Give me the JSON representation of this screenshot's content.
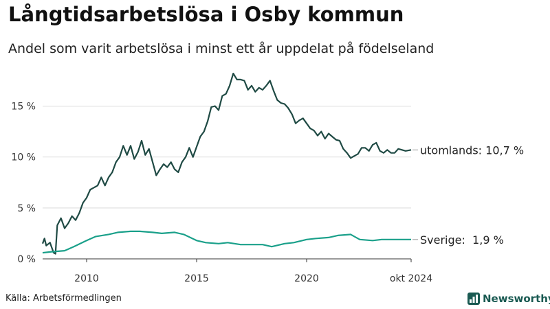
{
  "header": {
    "title": "Långtidsarbetslösa i Osby kommun",
    "subtitle": "Andel som varit arbetslösa i minst ett år uppdelat på födelseland"
  },
  "footer": {
    "source": "Källa: Arbetsförmedlingen",
    "brand": "Newsworthy"
  },
  "colors": {
    "foreign": "#1f4a44",
    "sweden": "#1aa08a",
    "grid": "#d9d9d9",
    "brand": "#1a5a52"
  },
  "chart_data": {
    "type": "line",
    "title": "Långtidsarbetslösa i Osby kommun",
    "subtitle": "Andel som varit arbetslösa i minst ett år uppdelat på födelseland",
    "xlabel": "",
    "ylabel": "",
    "xlim": [
      "2008-01",
      "2024-10"
    ],
    "ylim": [
      0,
      18
    ],
    "grid": "horizontal",
    "x_ticks": [
      {
        "x": "2010-01",
        "label": "2010"
      },
      {
        "x": "2015-01",
        "label": "2015"
      },
      {
        "x": "2020-01",
        "label": "2020"
      },
      {
        "x": "2024-10",
        "label": "okt 2024"
      }
    ],
    "y_ticks": [
      {
        "y": 0,
        "label": "0 %"
      },
      {
        "y": 5,
        "label": "5 %"
      },
      {
        "y": 10,
        "label": "10 %"
      },
      {
        "y": 15,
        "label": "15 %"
      }
    ],
    "series": [
      {
        "name": "utomlands",
        "end_label": "utomlands: 10,7 %",
        "color": "#1f4a44",
        "points": [
          [
            "2008-01",
            1.5
          ],
          [
            "2008-02",
            2.0
          ],
          [
            "2008-03",
            1.3
          ],
          [
            "2008-05",
            1.6
          ],
          [
            "2008-07",
            0.6
          ],
          [
            "2008-08",
            0.5
          ],
          [
            "2008-09",
            3.3
          ],
          [
            "2008-11",
            4.0
          ],
          [
            "2009-01",
            3.0
          ],
          [
            "2009-03",
            3.5
          ],
          [
            "2009-05",
            4.2
          ],
          [
            "2009-07",
            3.8
          ],
          [
            "2009-09",
            4.5
          ],
          [
            "2009-11",
            5.5
          ],
          [
            "2010-01",
            6.0
          ],
          [
            "2010-03",
            6.8
          ],
          [
            "2010-05",
            7.0
          ],
          [
            "2010-07",
            7.2
          ],
          [
            "2010-09",
            8.0
          ],
          [
            "2010-11",
            7.2
          ],
          [
            "2011-01",
            8.0
          ],
          [
            "2011-03",
            8.5
          ],
          [
            "2011-05",
            9.5
          ],
          [
            "2011-07",
            10.0
          ],
          [
            "2011-09",
            11.1
          ],
          [
            "2011-11",
            10.2
          ],
          [
            "2012-01",
            11.1
          ],
          [
            "2012-03",
            9.8
          ],
          [
            "2012-05",
            10.5
          ],
          [
            "2012-07",
            11.6
          ],
          [
            "2012-09",
            10.2
          ],
          [
            "2012-11",
            10.8
          ],
          [
            "2013-01",
            9.5
          ],
          [
            "2013-03",
            8.2
          ],
          [
            "2013-05",
            8.8
          ],
          [
            "2013-07",
            9.3
          ],
          [
            "2013-09",
            9.0
          ],
          [
            "2013-11",
            9.5
          ],
          [
            "2014-01",
            8.8
          ],
          [
            "2014-03",
            8.5
          ],
          [
            "2014-05",
            9.5
          ],
          [
            "2014-07",
            10.0
          ],
          [
            "2014-09",
            10.9
          ],
          [
            "2014-11",
            10.0
          ],
          [
            "2015-01",
            11.0
          ],
          [
            "2015-03",
            12.0
          ],
          [
            "2015-05",
            12.5
          ],
          [
            "2015-07",
            13.5
          ],
          [
            "2015-09",
            14.9
          ],
          [
            "2015-11",
            15.0
          ],
          [
            "2016-01",
            14.6
          ],
          [
            "2016-03",
            16.0
          ],
          [
            "2016-05",
            16.2
          ],
          [
            "2016-07",
            17.0
          ],
          [
            "2016-09",
            18.2
          ],
          [
            "2016-11",
            17.6
          ],
          [
            "2017-01",
            17.6
          ],
          [
            "2017-03",
            17.5
          ],
          [
            "2017-05",
            16.6
          ],
          [
            "2017-07",
            17.0
          ],
          [
            "2017-09",
            16.4
          ],
          [
            "2017-11",
            16.8
          ],
          [
            "2018-01",
            16.6
          ],
          [
            "2018-03",
            17.0
          ],
          [
            "2018-05",
            17.5
          ],
          [
            "2018-07",
            16.5
          ],
          [
            "2018-09",
            15.6
          ],
          [
            "2018-11",
            15.3
          ],
          [
            "2019-01",
            15.2
          ],
          [
            "2019-03",
            14.8
          ],
          [
            "2019-05",
            14.2
          ],
          [
            "2019-07",
            13.3
          ],
          [
            "2019-09",
            13.6
          ],
          [
            "2019-11",
            13.8
          ],
          [
            "2020-01",
            13.3
          ],
          [
            "2020-03",
            12.8
          ],
          [
            "2020-05",
            12.6
          ],
          [
            "2020-07",
            12.1
          ],
          [
            "2020-09",
            12.5
          ],
          [
            "2020-11",
            11.8
          ],
          [
            "2021-01",
            12.3
          ],
          [
            "2021-03",
            12.0
          ],
          [
            "2021-05",
            11.7
          ],
          [
            "2021-07",
            11.6
          ],
          [
            "2021-09",
            10.8
          ],
          [
            "2021-11",
            10.4
          ],
          [
            "2022-01",
            9.9
          ],
          [
            "2022-03",
            10.1
          ],
          [
            "2022-05",
            10.3
          ],
          [
            "2022-07",
            10.9
          ],
          [
            "2022-09",
            10.9
          ],
          [
            "2022-11",
            10.6
          ],
          [
            "2023-01",
            11.2
          ],
          [
            "2023-03",
            11.4
          ],
          [
            "2023-05",
            10.6
          ],
          [
            "2023-07",
            10.4
          ],
          [
            "2023-09",
            10.7
          ],
          [
            "2023-11",
            10.4
          ],
          [
            "2024-01",
            10.4
          ],
          [
            "2024-03",
            10.8
          ],
          [
            "2024-05",
            10.7
          ],
          [
            "2024-07",
            10.6
          ],
          [
            "2024-10",
            10.7
          ]
        ]
      },
      {
        "name": "Sverige",
        "end_label": "Sverige:  1,9 %",
        "color": "#1aa08a",
        "points": [
          [
            "2008-01",
            0.6
          ],
          [
            "2008-06",
            0.7
          ],
          [
            "2009-01",
            0.8
          ],
          [
            "2009-06",
            1.2
          ],
          [
            "2010-01",
            1.8
          ],
          [
            "2010-06",
            2.2
          ],
          [
            "2011-01",
            2.4
          ],
          [
            "2011-06",
            2.6
          ],
          [
            "2012-01",
            2.7
          ],
          [
            "2012-06",
            2.7
          ],
          [
            "2013-01",
            2.6
          ],
          [
            "2013-06",
            2.5
          ],
          [
            "2014-01",
            2.6
          ],
          [
            "2014-06",
            2.4
          ],
          [
            "2015-01",
            1.8
          ],
          [
            "2015-06",
            1.6
          ],
          [
            "2016-01",
            1.5
          ],
          [
            "2016-06",
            1.6
          ],
          [
            "2017-01",
            1.4
          ],
          [
            "2017-06",
            1.4
          ],
          [
            "2018-01",
            1.4
          ],
          [
            "2018-06",
            1.2
          ],
          [
            "2019-01",
            1.5
          ],
          [
            "2019-06",
            1.6
          ],
          [
            "2020-01",
            1.9
          ],
          [
            "2020-06",
            2.0
          ],
          [
            "2021-01",
            2.1
          ],
          [
            "2021-06",
            2.3
          ],
          [
            "2022-01",
            2.4
          ],
          [
            "2022-06",
            1.9
          ],
          [
            "2023-01",
            1.8
          ],
          [
            "2023-06",
            1.9
          ],
          [
            "2024-01",
            1.9
          ],
          [
            "2024-06",
            1.9
          ],
          [
            "2024-10",
            1.9
          ]
        ]
      }
    ]
  }
}
